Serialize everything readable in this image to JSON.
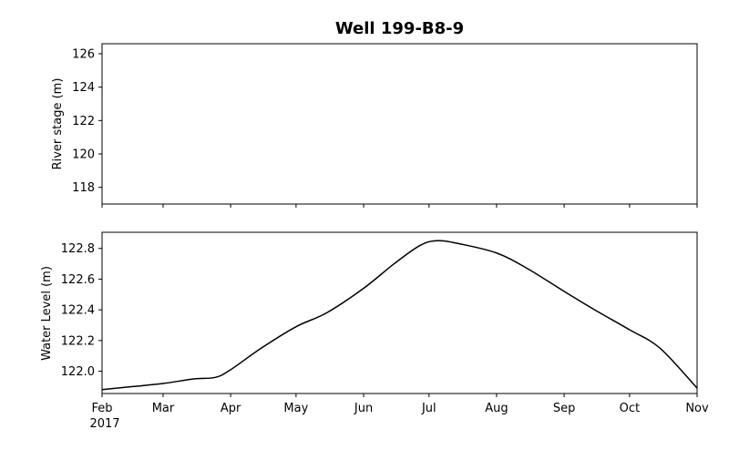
{
  "chart_data": [
    {
      "type": "line",
      "title": "Well 199-B8-9",
      "xlabel": "",
      "ylabel": "River stage (m)",
      "ylim": [
        117,
        126.6
      ],
      "yticks": [
        118,
        120,
        122,
        124,
        126
      ],
      "series": [],
      "grid": false
    },
    {
      "type": "line",
      "title": "",
      "xlabel": "",
      "ylabel": "Water Level (m)",
      "ylim": [
        121.855,
        122.905
      ],
      "yticks": [
        "122.0",
        "122.2",
        "122.4",
        "122.6",
        "122.8"
      ],
      "x_axis": {
        "type": "date",
        "range": [
          "2017-02-01",
          "2017-11-01"
        ],
        "tick_labels": [
          "Feb",
          "Mar",
          "Apr",
          "May",
          "Jun",
          "Jul",
          "Aug",
          "Sep",
          "Oct",
          "Nov"
        ],
        "year_label": "2017"
      },
      "series": [
        {
          "color": "#000000",
          "x": [
            "2017-02-01",
            "2017-02-15",
            "2017-03-01",
            "2017-03-15",
            "2017-03-25",
            "2017-04-01",
            "2017-04-15",
            "2017-05-01",
            "2017-05-15",
            "2017-06-01",
            "2017-06-15",
            "2017-06-27",
            "2017-07-05",
            "2017-07-15",
            "2017-08-01",
            "2017-08-15",
            "2017-09-01",
            "2017-09-15",
            "2017-10-01",
            "2017-10-15",
            "2017-11-01"
          ],
          "y": [
            121.88,
            121.9,
            121.92,
            121.95,
            121.96,
            122.01,
            122.15,
            122.29,
            122.38,
            122.54,
            122.7,
            122.82,
            122.85,
            122.83,
            122.77,
            122.67,
            122.52,
            122.4,
            122.27,
            122.15,
            121.89
          ]
        }
      ],
      "grid": false
    }
  ]
}
